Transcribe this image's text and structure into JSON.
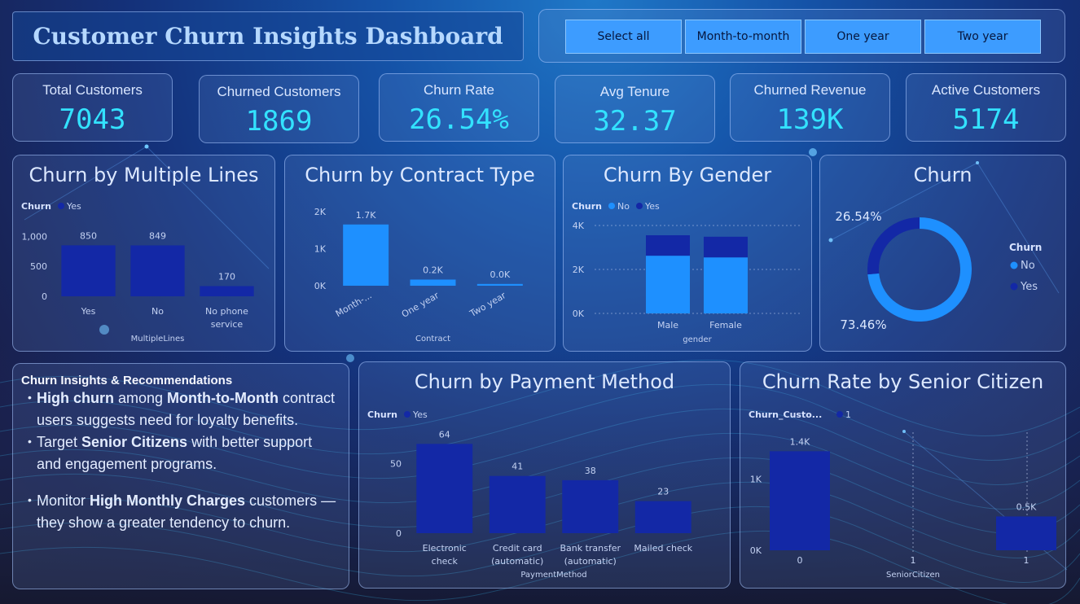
{
  "dashboard": {
    "title": "Customer Churn Insights Dashboard"
  },
  "slicer": {
    "options": [
      "Select all",
      "Month-to-month",
      "One year",
      "Two year"
    ]
  },
  "kpis": [
    {
      "label": "Total Customers",
      "value": "7043"
    },
    {
      "label": "Churned Customers",
      "value": "1869"
    },
    {
      "label": "Churn Rate",
      "value": "26.54%"
    },
    {
      "label": "Avg Tenure",
      "value": "32.37"
    },
    {
      "label": "Churned Revenue",
      "value": "139K"
    },
    {
      "label": "Active Customers",
      "value": "5174"
    }
  ],
  "insights": {
    "heading": "Churn Insights & Recommendations",
    "items": [
      [
        {
          "t": "High churn",
          "b": true
        },
        {
          "t": " among ",
          "b": false
        },
        {
          "t": "Month-to-Month",
          "b": true
        },
        {
          "t": " contract users suggests need for loyalty benefits.",
          "b": false
        }
      ],
      [
        {
          "t": "Target ",
          "b": false
        },
        {
          "t": "Senior Citizens",
          "b": true
        },
        {
          "t": " with better support and engagement programs.",
          "b": false
        }
      ],
      [
        {
          "t": "Monitor ",
          "b": false
        },
        {
          "t": "High Monthly Charges",
          "b": true
        },
        {
          "t": " customers — they show a greater tendency to churn.",
          "b": false
        }
      ]
    ]
  },
  "colors": {
    "dark_bar": "#1328a6",
    "light_bar": "#1e90ff",
    "kpi_value": "#33e2ff",
    "accent": "#3d9cff"
  },
  "chart_data": [
    {
      "id": "multiple-lines",
      "type": "bar",
      "title": "Churn by Multiple Lines",
      "legend_title": "Churn",
      "series": [
        {
          "name": "Yes",
          "values": [
            850,
            849,
            170
          ]
        }
      ],
      "categories": [
        "Yes",
        "No",
        "No phone service"
      ],
      "data_labels": [
        "850",
        "849",
        "170"
      ],
      "xlabel": "MultipleLines",
      "ylabel": "",
      "ylim": [
        0,
        1100
      ],
      "yticks": [
        0,
        500,
        1000
      ],
      "ytick_labels": [
        "0",
        "500",
        "1,000"
      ],
      "legend_position": "top-left",
      "grid": false
    },
    {
      "id": "contract-type",
      "type": "bar",
      "title": "Churn by Contract Type",
      "legend_title": "",
      "series": [
        {
          "name": "",
          "values": [
            1655,
            166,
            48
          ]
        }
      ],
      "categories": [
        "Month-...",
        "One year",
        "Two year"
      ],
      "data_labels": [
        "1.7K",
        "0.2K",
        "0.0K"
      ],
      "xlabel": "Contract",
      "ylabel": "",
      "ylim": [
        0,
        2200
      ],
      "yticks": [
        0,
        1000,
        2000
      ],
      "ytick_labels": [
        "0K",
        "1K",
        "2K"
      ],
      "grid": false
    },
    {
      "id": "gender",
      "type": "bar",
      "title": "Churn By Gender",
      "legend_title": "Churn",
      "stacked": true,
      "categories": [
        "Male",
        "Female"
      ],
      "series": [
        {
          "name": "No",
          "values": [
            2625,
            2549
          ]
        },
        {
          "name": "Yes",
          "values": [
            930,
            939
          ]
        }
      ],
      "xlabel": "gender",
      "ylabel": "",
      "ylim": [
        0,
        4000
      ],
      "yticks": [
        0,
        2000,
        4000
      ],
      "ytick_labels": [
        "0K",
        "2K",
        "4K"
      ],
      "legend_position": "top-left",
      "grid": true
    },
    {
      "id": "churn-donut",
      "type": "pie",
      "title": "Churn",
      "donut": true,
      "legend_title": "Churn",
      "categories": [
        "No",
        "Yes"
      ],
      "values": [
        73.46,
        26.54
      ],
      "data_labels": [
        "73.46%",
        "26.54%"
      ],
      "legend_position": "right"
    },
    {
      "id": "payment-method",
      "type": "bar",
      "title": "Churn by Payment Method",
      "legend_title": "Churn",
      "series": [
        {
          "name": "Yes",
          "values": [
            64,
            41,
            38,
            23
          ]
        }
      ],
      "categories": [
        "Electronic check",
        "Credit card (automatic)",
        "Bank transfer (automatic)",
        "Mailed check"
      ],
      "data_labels": [
        "64",
        "41",
        "38",
        "23"
      ],
      "xlabel": "PaymentMethod",
      "ylabel": "",
      "ylim": [
        0,
        70
      ],
      "yticks": [
        0,
        50
      ],
      "ytick_labels": [
        "0",
        "50"
      ],
      "legend_position": "top-left",
      "grid": false
    },
    {
      "id": "senior-citizen",
      "type": "bar",
      "title": "Churn Rate by Senior Citizen",
      "legend_title": "Churn_Custo...",
      "series": [
        {
          "name": "1",
          "values": [
            1393,
            476
          ]
        }
      ],
      "categories": [
        "0",
        "1"
      ],
      "data_labels": [
        "1.4K",
        "0.5K"
      ],
      "xlabel": "SeniorCitizen",
      "ylabel": "",
      "ylim": [
        0,
        1500
      ],
      "yticks": [
        0,
        1000
      ],
      "ytick_labels": [
        "0K",
        "1K"
      ],
      "legend_position": "top-left",
      "grid": false
    }
  ]
}
